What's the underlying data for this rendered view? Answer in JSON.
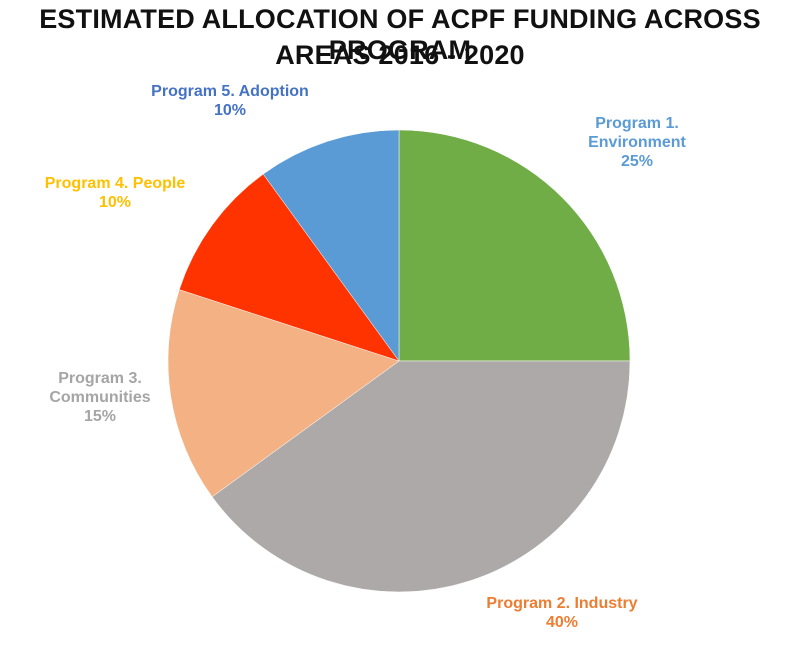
{
  "chart_data": {
    "type": "pie",
    "title_lines": [
      "ESTIMATED ALLOCATION OF ACPF FUNDING ACROSS PROGRAM",
      "AREAS 2016 - 2020"
    ],
    "start_angle_deg": 0,
    "direction": "clockwise",
    "slices": [
      {
        "label_lines": [
          "Program 1.",
          "Environment"
        ],
        "value": 25,
        "value_label": "25%",
        "color": "#70AD47",
        "label_color": "#5B9BD5"
      },
      {
        "label_lines": [
          "Program 2. Industry"
        ],
        "value": 40,
        "value_label": "40%",
        "color": "#ADA9A9",
        "label_color": "#ED7D31"
      },
      {
        "label_lines": [
          "Program 3.",
          "Communities"
        ],
        "value": 15,
        "value_label": "15%",
        "color": "#F4B183",
        "label_color": "#A5A5A5"
      },
      {
        "label_lines": [
          "Program 4. People"
        ],
        "value": 10,
        "value_label": "10%",
        "color": "#FF3300",
        "label_color": "#FFC000"
      },
      {
        "label_lines": [
          "Program 5. Adoption"
        ],
        "value": 10,
        "value_label": "10%",
        "color": "#5B9BD5",
        "label_color": "#4472C4"
      }
    ]
  }
}
